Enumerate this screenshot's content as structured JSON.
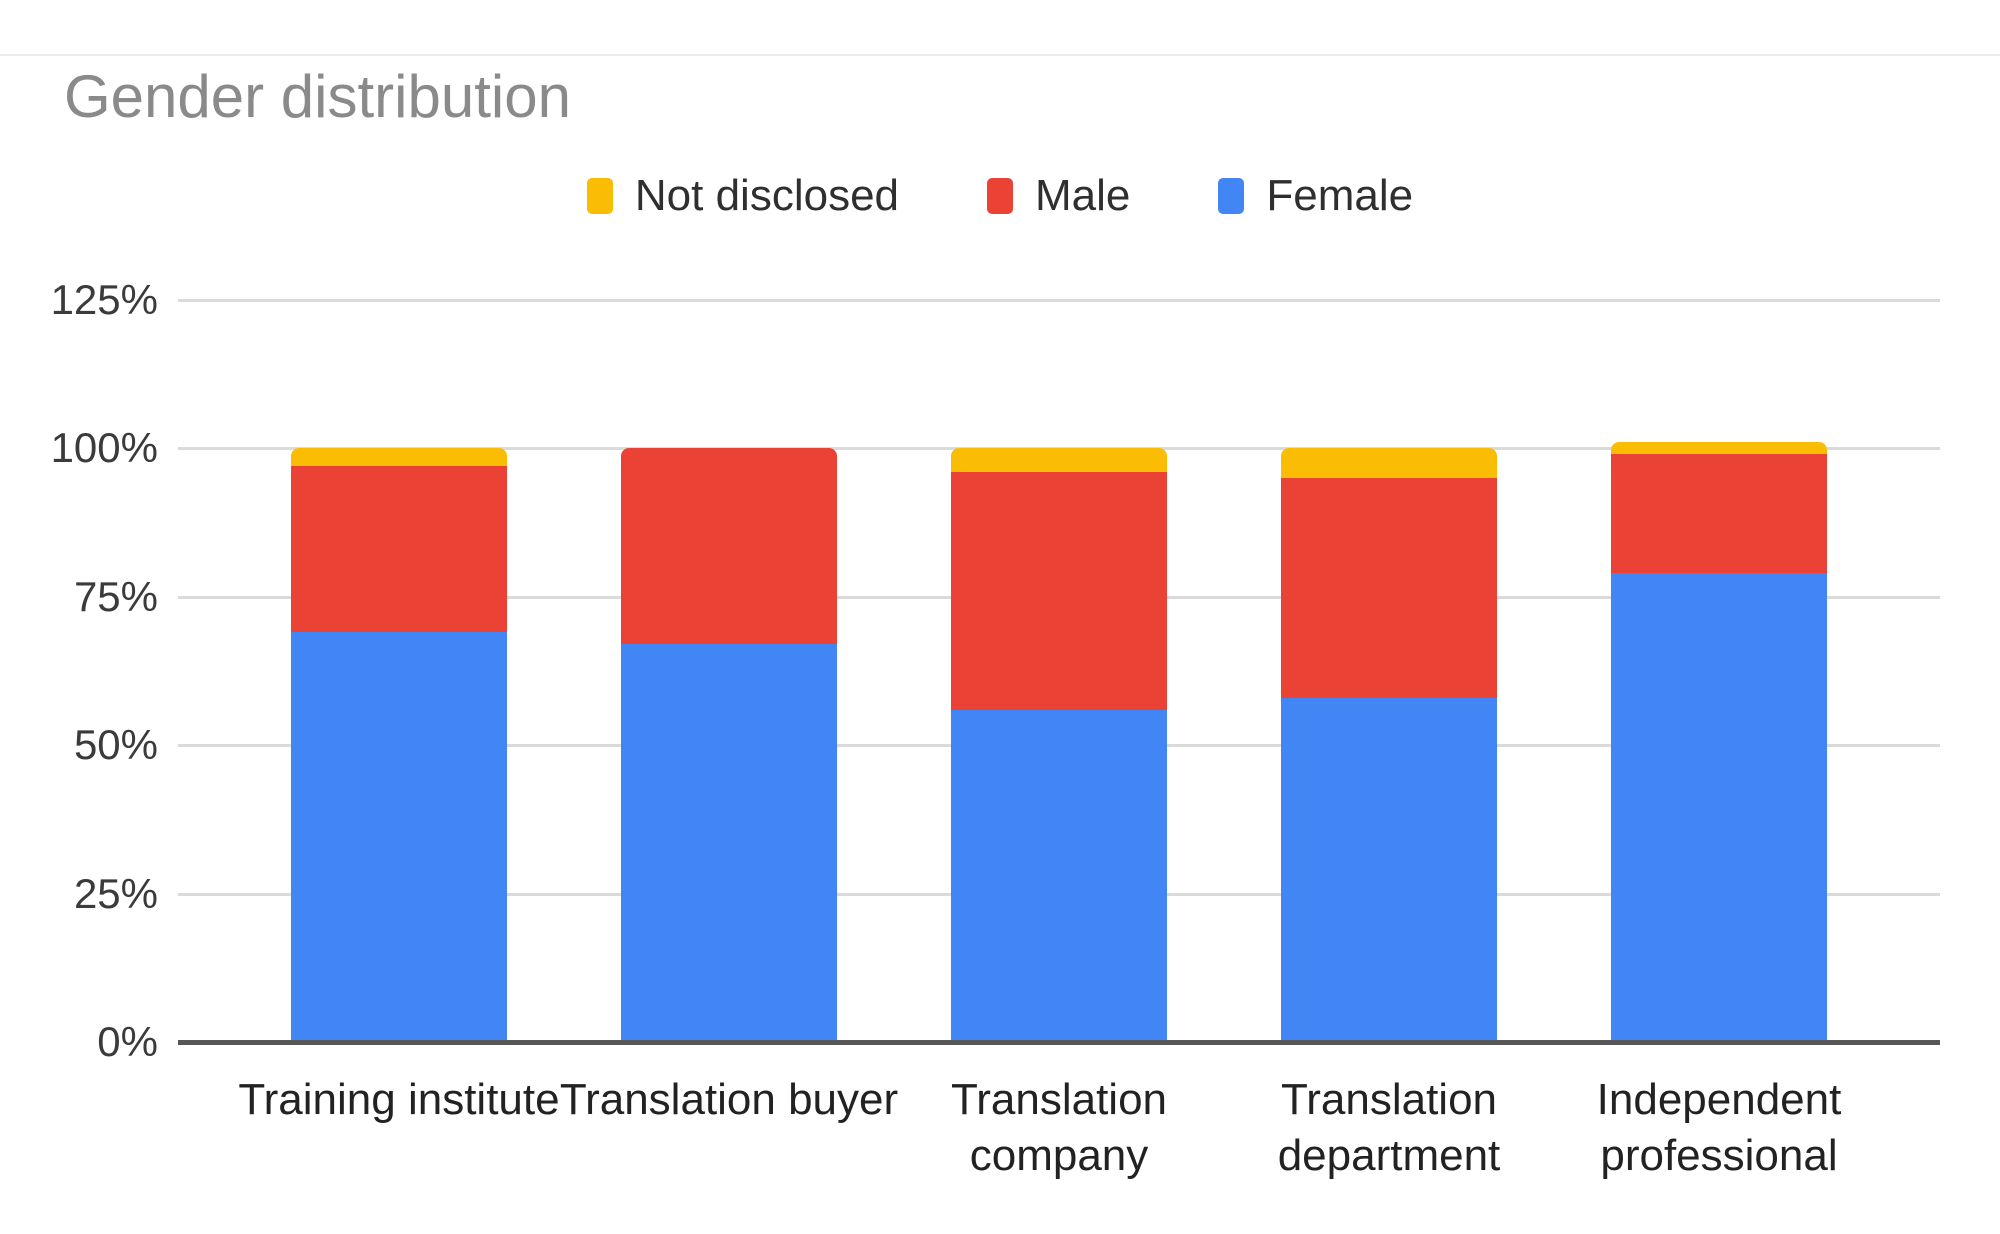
{
  "chart": {
    "title": "Gender distribution"
  },
  "chart_data": {
    "type": "bar",
    "stacked": true,
    "title": "Gender distribution",
    "categories": [
      "Training institute",
      "Translation buyer",
      "Translation company",
      "Translation department",
      "Independent professional"
    ],
    "series": [
      {
        "name": "Not disclosed",
        "color": "#FBBC04",
        "values": [
          3,
          0,
          4,
          5,
          2
        ]
      },
      {
        "name": "Male",
        "color": "#EA4335",
        "values": [
          28,
          33,
          40,
          37,
          20
        ]
      },
      {
        "name": "Female",
        "color": "#4285F4",
        "values": [
          69,
          67,
          56,
          58,
          79
        ]
      }
    ],
    "stack_order_bottom_to_top": [
      "Female",
      "Male",
      "Not disclosed"
    ],
    "legend_order": [
      "Not disclosed",
      "Male",
      "Female"
    ],
    "legend_position": "top",
    "y_tick_values": [
      0,
      25,
      50,
      75,
      100,
      125
    ],
    "y_tick_labels": [
      "0%",
      "25%",
      "50%",
      "75%",
      "100%",
      "125%"
    ],
    "ylim": [
      0,
      125
    ],
    "grid": true,
    "colors": {
      "title": "#8a8a8a",
      "axis_line": "#565656",
      "gridline": "#dadada",
      "tick_label": "#3b3b3b",
      "category_label": "#222222",
      "legend_label": "#2f2f2f",
      "background": "#ffffff"
    }
  }
}
